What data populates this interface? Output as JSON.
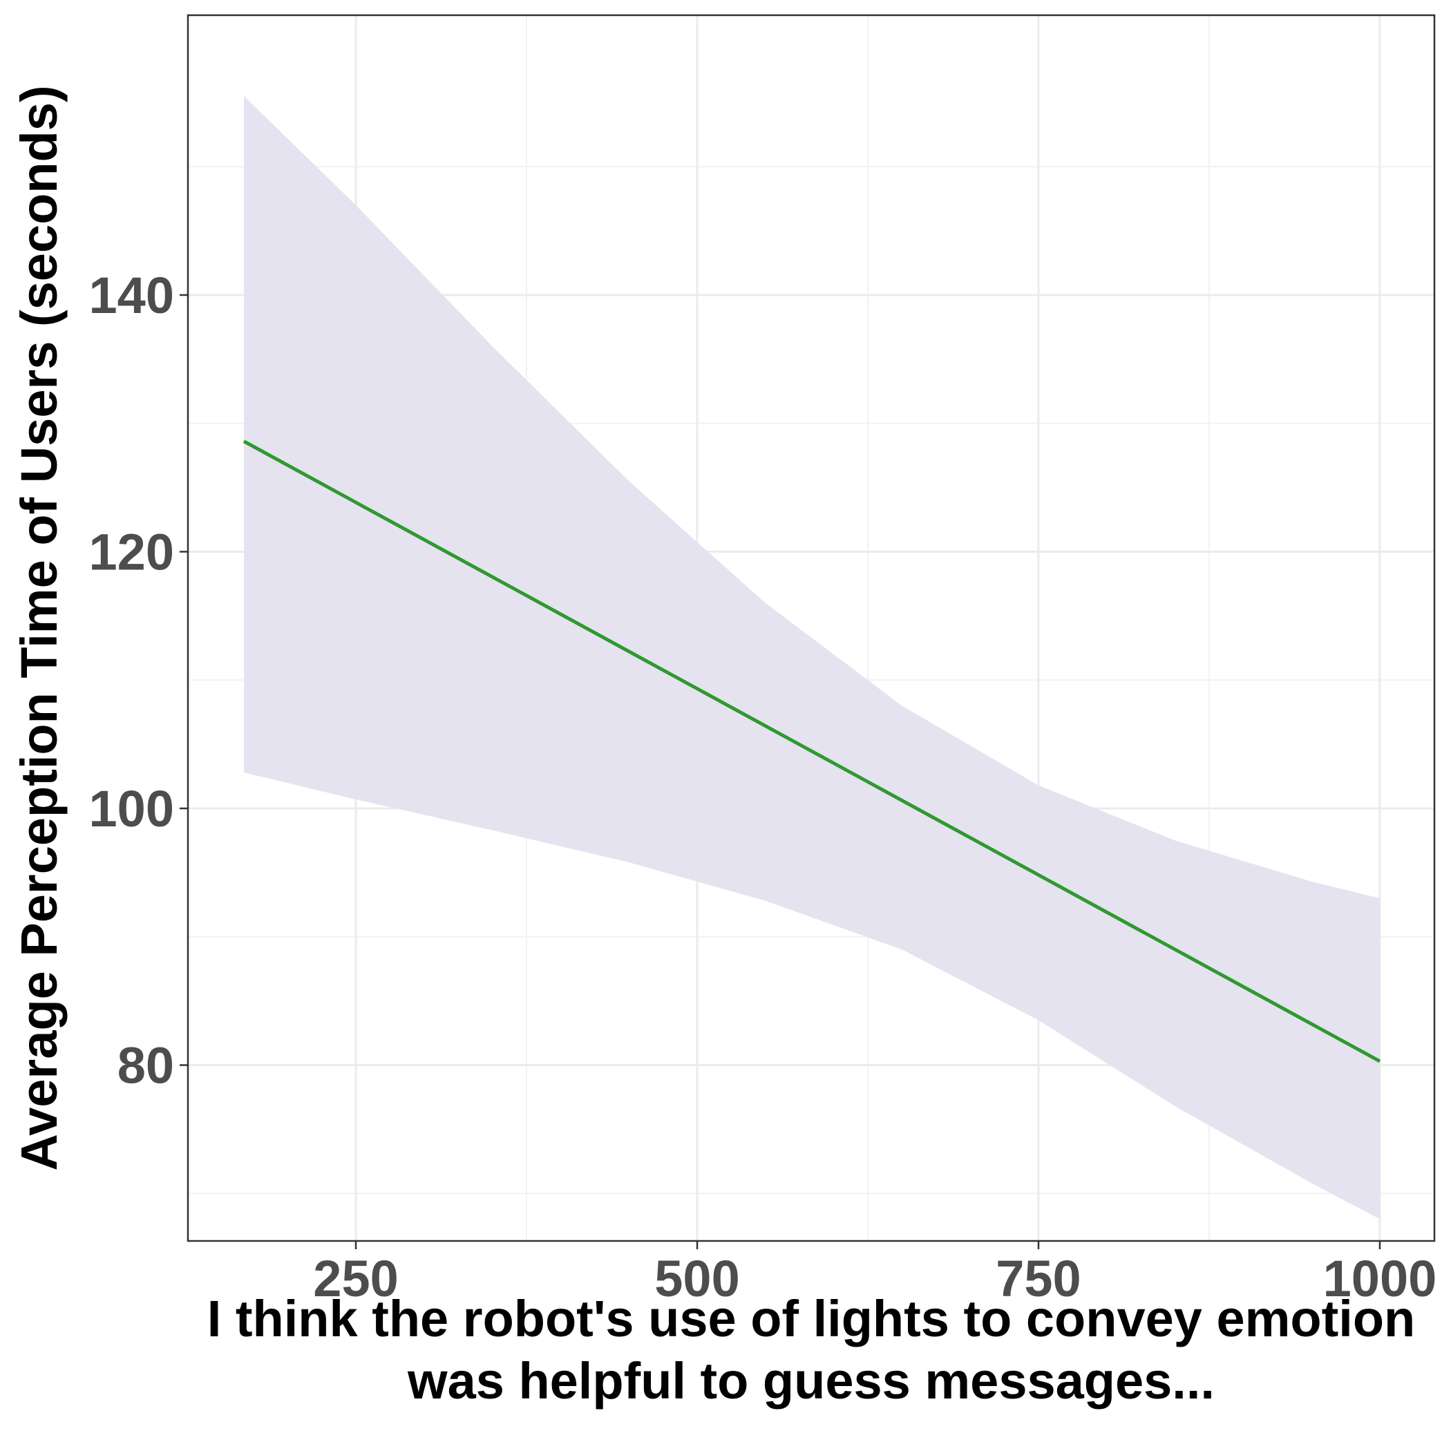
{
  "chart_data": {
    "type": "line",
    "title": "",
    "xlabel_lines": [
      "I think the robot's use of lights to convey emotion",
      "was helpful to guess messages..."
    ],
    "ylabel": "Average Perception Time of Users (seconds)",
    "xlim": [
      127,
      1040
    ],
    "ylim": [
      66.3,
      161.8
    ],
    "x_ticks": [
      250,
      500,
      750,
      1000
    ],
    "x_tick_labels": [
      "250",
      "500",
      "750",
      "1000"
    ],
    "x_minor_ticks": [
      375,
      625,
      875
    ],
    "y_ticks": [
      80,
      100,
      120,
      140
    ],
    "y_tick_labels": [
      "80",
      "100",
      "120",
      "140"
    ],
    "y_minor_ticks": [
      70,
      90,
      110,
      130,
      150
    ],
    "grid": true,
    "series": [
      {
        "name": "fit",
        "color": "#2e9a2e",
        "x": [
          168,
          1000
        ],
        "y": [
          128.6,
          80.3
        ]
      }
    ],
    "confidence_band": {
      "color": "#e4e3ef",
      "x": [
        168,
        250,
        350,
        450,
        550,
        650,
        750,
        850,
        950,
        1000
      ],
      "upper": [
        155.5,
        147.0,
        136.0,
        125.5,
        116.0,
        108.0,
        101.8,
        97.5,
        94.3,
        93.0
      ],
      "lower": [
        102.8,
        100.7,
        98.3,
        95.8,
        92.8,
        89.0,
        83.5,
        76.8,
        70.8,
        68.0
      ]
    }
  }
}
